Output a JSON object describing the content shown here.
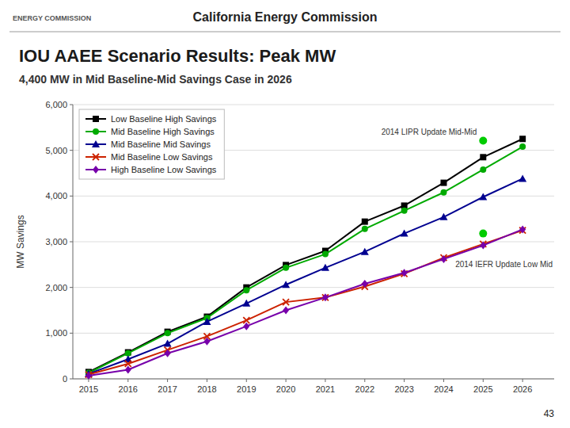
{
  "header": "California Energy Commission",
  "seal_text": "ENERGY COMMISSION",
  "page_number": "43",
  "chart_data": {
    "type": "line",
    "title": "IOU AAEE Scenario Results: Peak MW",
    "subtitle": "4,400 MW in Mid Baseline-Mid Savings Case in 2026",
    "ylabel": "MW Savings",
    "x": [
      2015,
      2016,
      2017,
      2018,
      2019,
      2020,
      2021,
      2022,
      2023,
      2024,
      2025,
      2026
    ],
    "xlim": [
      2014.6,
      2026.8
    ],
    "xticks": [
      2015,
      2016,
      2017,
      2018,
      2019,
      2020,
      2021,
      2022,
      2023,
      2024,
      2025,
      2026
    ],
    "ylim": [
      0,
      6000
    ],
    "yticks": [
      0,
      {
        "value": 1000,
        "label": "1,000"
      },
      {
        "value": 2000,
        "label": "2,000"
      },
      {
        "value": 3000,
        "label": "3,000"
      },
      {
        "value": 4000,
        "label": "4,000"
      },
      {
        "value": 5000,
        "label": "5,000"
      },
      {
        "value": 6000,
        "label": "6,000"
      }
    ],
    "grid": true,
    "legend": "upper left",
    "series": [
      {
        "name": "Low Baseline High Savings",
        "color": "#000000",
        "marker": "square",
        "values": [
          150,
          580,
          1030,
          1360,
          2000,
          2490,
          2800,
          3440,
          3790,
          4290,
          4850,
          5250
        ]
      },
      {
        "name": "Mid Baseline High Savings",
        "color": "#00aa00",
        "marker": "circle",
        "values": [
          130,
          560,
          1000,
          1330,
          1940,
          2430,
          2730,
          3280,
          3680,
          4080,
          4580,
          5080
        ]
      },
      {
        "name": "Mid Baseline Mid Savings",
        "color": "#000090",
        "marker": "triangle",
        "values": [
          110,
          430,
          770,
          1250,
          1650,
          2060,
          2430,
          2780,
          3180,
          3540,
          3980,
          4380
        ]
      },
      {
        "name": "Mid Baseline Low Savings",
        "color": "#cc2200",
        "marker": "x",
        "values": [
          95,
          330,
          630,
          930,
          1280,
          1680,
          1780,
          2020,
          2300,
          2650,
          2950,
          3250
        ]
      },
      {
        "name": "High Baseline Low Savings",
        "color": "#7700aa",
        "marker": "diamond",
        "values": [
          70,
          200,
          560,
          820,
          1150,
          1500,
          1780,
          2080,
          2320,
          2620,
          2920,
          3270
        ]
      }
    ],
    "annotations": [
      {
        "text": "2014 LIPR Update Mid-Mid",
        "x": 2025,
        "y": 5210,
        "color": "#00cc00"
      },
      {
        "text": "2014 IEFR Update Low Mid",
        "x": 2025,
        "y": 3180,
        "color": "#00cc00"
      }
    ]
  }
}
